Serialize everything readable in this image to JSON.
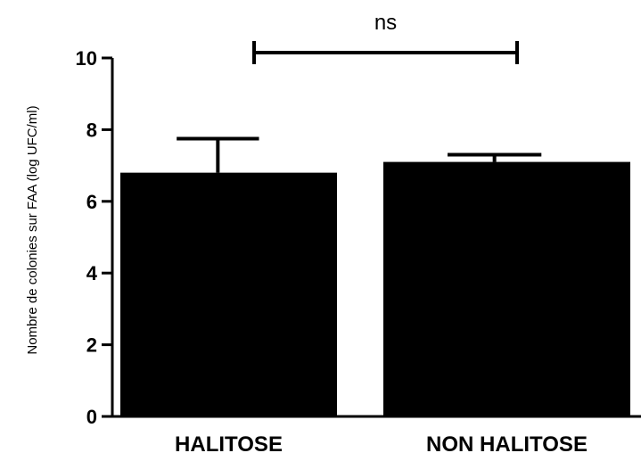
{
  "chart_data": {
    "type": "bar",
    "title": "",
    "xlabel": "",
    "ylabel": "Nombre de colonies sur FAA (log UFC/ml)",
    "categories": [
      "HALITOSE",
      "NON HALITOSE"
    ],
    "values": [
      6.8,
      7.1
    ],
    "error_bars": [
      0.95,
      0.2
    ],
    "ylim": [
      0,
      10
    ],
    "yticks": [
      0,
      2,
      4,
      6,
      8,
      10
    ],
    "grid": false,
    "legend": "none",
    "bar_color": "#000000",
    "significance": {
      "label": "ns",
      "between": [
        "HALITOSE",
        "NON HALITOSE"
      ],
      "level": 10
    }
  }
}
